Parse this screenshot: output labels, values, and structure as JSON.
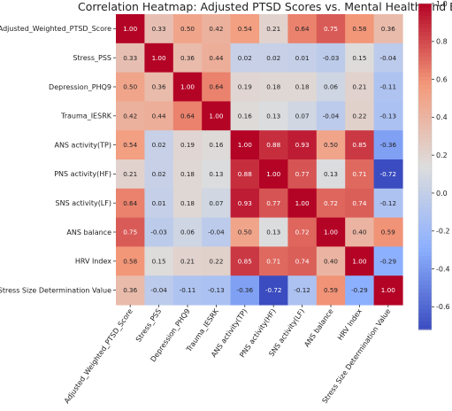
{
  "chart_data": {
    "type": "heatmap",
    "title": "Correlation Heatmap: Adjusted PTSD Scores vs. Mental Health and Biomark",
    "labels": [
      "Adjusted_Weighted_PTSD_Score",
      "Stress_PSS",
      "Depression_PHQ9",
      "Trauma_IESRK",
      "ANS activity(TP)",
      "PNS activity(HF)",
      "SNS activity(LF)",
      "ANS balance",
      "HRV Index",
      "Stress Size Determination Value"
    ],
    "values": [
      [
        1.0,
        0.33,
        0.5,
        0.42,
        0.54,
        0.21,
        0.64,
        0.75,
        0.58,
        0.36
      ],
      [
        0.33,
        1.0,
        0.36,
        0.44,
        0.02,
        0.02,
        0.01,
        -0.03,
        0.15,
        -0.04
      ],
      [
        0.5,
        0.36,
        1.0,
        0.64,
        0.19,
        0.18,
        0.18,
        0.06,
        0.21,
        -0.11
      ],
      [
        0.42,
        0.44,
        0.64,
        1.0,
        0.16,
        0.13,
        0.07,
        -0.04,
        0.22,
        -0.13
      ],
      [
        0.54,
        0.02,
        0.19,
        0.16,
        1.0,
        0.88,
        0.93,
        0.5,
        0.85,
        -0.36
      ],
      [
        0.21,
        0.02,
        0.18,
        0.13,
        0.88,
        1.0,
        0.77,
        0.13,
        0.71,
        -0.72
      ],
      [
        0.64,
        0.01,
        0.18,
        0.07,
        0.93,
        0.77,
        1.0,
        0.72,
        0.74,
        -0.12
      ],
      [
        0.75,
        -0.03,
        0.06,
        -0.04,
        0.5,
        0.13,
        0.72,
        1.0,
        0.4,
        0.59
      ],
      [
        0.58,
        0.15,
        0.21,
        0.22,
        0.85,
        0.71,
        0.74,
        0.4,
        1.0,
        -0.29
      ],
      [
        0.36,
        -0.04,
        -0.11,
        -0.13,
        -0.36,
        -0.72,
        -0.12,
        0.59,
        -0.29,
        1.0
      ]
    ],
    "colormap": "coolwarm",
    "vmin": -0.72,
    "vmax": 1.0,
    "colorbar_ticks": [
      "1.0",
      "0.8",
      "0.6",
      "0.4",
      "0.2",
      "0.0",
      "-0.2",
      "-0.4",
      "-0.6"
    ],
    "annotations": true
  }
}
